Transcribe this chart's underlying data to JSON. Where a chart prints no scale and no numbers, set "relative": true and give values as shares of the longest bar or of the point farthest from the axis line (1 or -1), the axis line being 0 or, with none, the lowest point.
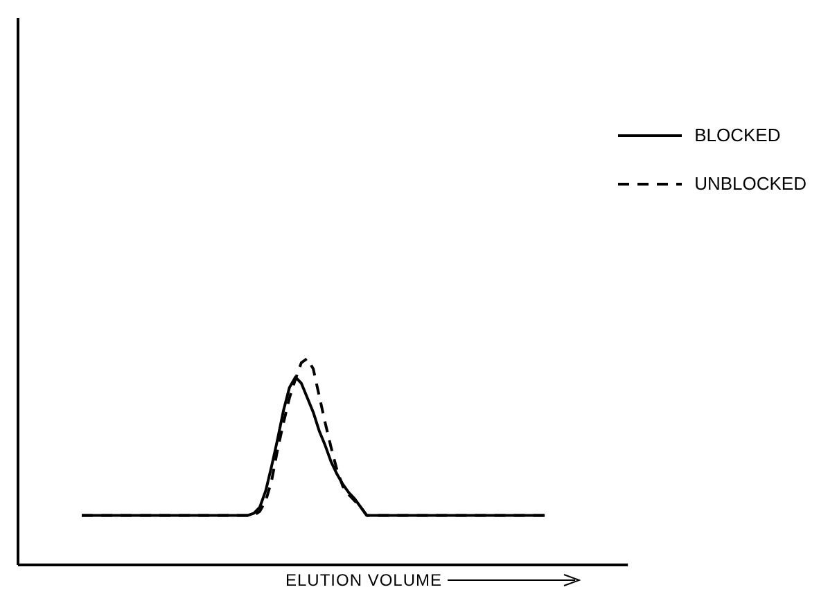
{
  "chart_data": {
    "type": "line",
    "relative": true,
    "xlabel": "ELUTION VOLUME",
    "legend": "top right",
    "grid": false,
    "marker": "none",
    "categories": [
      null,
      null,
      null,
      null,
      null,
      null,
      null,
      null,
      null,
      null,
      null,
      null,
      null,
      null,
      null,
      null,
      null,
      null,
      null,
      null,
      null,
      null,
      null,
      null,
      null,
      null,
      null,
      null,
      null,
      null,
      null,
      null,
      null,
      null,
      null,
      null,
      null,
      null,
      null,
      null,
      null,
      null,
      null,
      null,
      null,
      null,
      null,
      null,
      null,
      null,
      null,
      null,
      null,
      null,
      null,
      null,
      null,
      null,
      null,
      null,
      null,
      null,
      null,
      null,
      null,
      null,
      null,
      null,
      null,
      null,
      null,
      null,
      null,
      null,
      null,
      null,
      null,
      null,
      null
    ],
    "series": [
      {
        "name": "BLOCKED",
        "color": "#000000",
        "line_style": "solid",
        "values": [
          0.24,
          0.24,
          0.24,
          0.24,
          0.24,
          0.24,
          0.24,
          0.24,
          0.24,
          0.24,
          0.24,
          0.24,
          0.24,
          0.24,
          0.24,
          0.24,
          0.24,
          0.24,
          0.24,
          0.24,
          0.24,
          0.24,
          0.24,
          0.24,
          0.24,
          0.24,
          0.24,
          0.24,
          0.24,
          0.25,
          0.28,
          0.36,
          0.48,
          0.61,
          0.75,
          0.86,
          0.91,
          0.88,
          0.81,
          0.74,
          0.65,
          0.58,
          0.5,
          0.44,
          0.39,
          0.35,
          0.32,
          0.28,
          0.24,
          0.24,
          0.24,
          0.24,
          0.24,
          0.24,
          0.24,
          0.24,
          0.24,
          0.24,
          0.24,
          0.24,
          0.24,
          0.24,
          0.24,
          0.24,
          0.24,
          0.24,
          0.24,
          0.24,
          0.24,
          0.24,
          0.24,
          0.24,
          0.24,
          0.24,
          0.24,
          0.24,
          0.24,
          0.24,
          0.24
        ]
      },
      {
        "name": "UNBLOCKED",
        "color": "#000000",
        "line_style": "dashed",
        "values": [
          0.24,
          0.24,
          0.24,
          0.24,
          0.24,
          0.24,
          0.24,
          0.24,
          0.24,
          0.24,
          0.24,
          0.24,
          0.24,
          0.24,
          0.24,
          0.24,
          0.24,
          0.24,
          0.24,
          0.24,
          0.24,
          0.24,
          0.24,
          0.24,
          0.24,
          0.24,
          0.24,
          0.24,
          0.24,
          0.24,
          0.26,
          0.31,
          0.41,
          0.56,
          0.69,
          0.81,
          0.9,
          0.98,
          1.0,
          0.95,
          0.82,
          0.69,
          0.57,
          0.46,
          0.38,
          0.34,
          0.31,
          0.28,
          0.24,
          0.24,
          0.24,
          0.24,
          0.24,
          0.24,
          0.24,
          0.24,
          0.24,
          0.24,
          0.24,
          0.24,
          0.24,
          0.24,
          0.24,
          0.24,
          0.24,
          0.24,
          0.24,
          0.24,
          0.24,
          0.24,
          0.24,
          0.24,
          0.24,
          0.24,
          0.24,
          0.24,
          0.24,
          0.24,
          0.24
        ]
      }
    ]
  }
}
